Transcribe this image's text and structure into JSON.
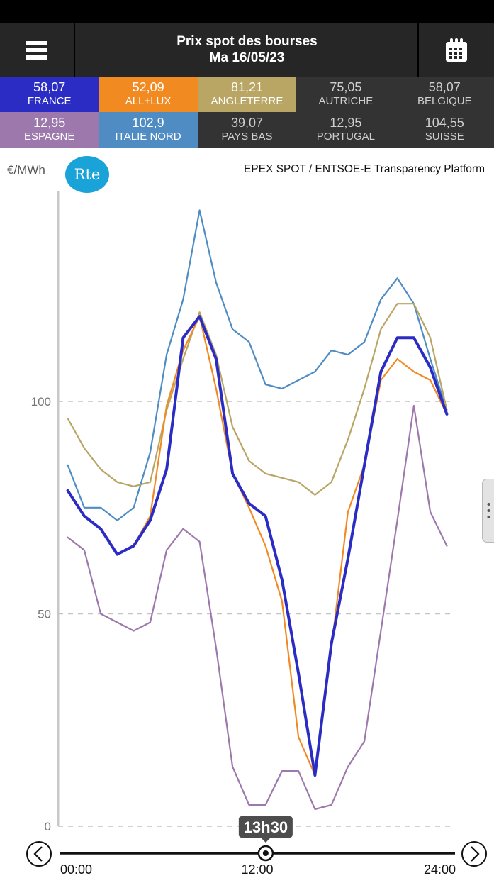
{
  "header": {
    "title": "Prix spot des bourses",
    "date": "Ma 16/05/23",
    "menu_icon": "hamburger-icon",
    "calendar_icon": "calendar-icon"
  },
  "tiles": [
    {
      "value": "58,07",
      "name": "FRANCE",
      "color": "#2a2cc4"
    },
    {
      "value": "52,09",
      "name": "ALL+LUX",
      "color": "#f28a22"
    },
    {
      "value": "81,21",
      "name": "ANGLETERRE",
      "color": "#b9a564"
    },
    {
      "value": "75,05",
      "name": "AUTRICHE",
      "color": "#333333"
    },
    {
      "value": "58,07",
      "name": "BELGIQUE",
      "color": "#333333"
    },
    {
      "value": "12,95",
      "name": "ESPAGNE",
      "color": "#9d78ad"
    },
    {
      "value": "102,9",
      "name": "ITALIE NORD",
      "color": "#4e8cc3"
    },
    {
      "value": "39,07",
      "name": "PAYS BAS",
      "color": "#333333"
    },
    {
      "value": "12,95",
      "name": "PORTUGAL",
      "color": "#333333"
    },
    {
      "value": "104,55",
      "name": "SUISSE",
      "color": "#333333"
    }
  ],
  "chart": {
    "unit": "€/MWh",
    "logo": "Rte",
    "source": "EPEX SPOT / ENTSOE-E Transparency Platform",
    "cursor_label": "13h30",
    "prev_icon": "chevron-left-icon",
    "next_icon": "chevron-right-icon"
  },
  "chart_data": {
    "type": "line",
    "x": [
      0,
      1,
      2,
      3,
      4,
      5,
      6,
      7,
      8,
      9,
      10,
      11,
      12,
      13,
      14,
      15,
      16,
      17,
      18,
      19,
      20,
      21,
      22,
      23
    ],
    "x_ticks": [
      "00:00",
      "12:00",
      "24:00"
    ],
    "xlim": [
      0,
      24
    ],
    "ylim": [
      0,
      145
    ],
    "y_ticks": [
      0,
      50,
      100
    ],
    "grid": "horizontal dashed",
    "series": [
      {
        "name": "ITALIE NORD",
        "color": "#4e8cc3",
        "width": 2.2,
        "values": [
          85,
          75,
          75,
          72,
          75,
          88,
          111,
          124,
          145,
          128,
          117,
          114,
          104,
          103,
          105,
          107,
          112,
          111,
          114,
          124,
          129,
          123,
          110,
          98
        ]
      },
      {
        "name": "ANGLETERRE",
        "color": "#b9a564",
        "width": 2.2,
        "values": [
          96,
          89,
          84,
          81,
          80,
          81,
          98,
          110,
          121,
          111,
          94,
          86,
          83,
          82,
          81,
          78,
          81,
          91,
          103,
          117,
          123,
          123,
          115,
          98
        ]
      },
      {
        "name": "ALL+LUX",
        "color": "#f28a22",
        "width": 2.2,
        "values": [
          79,
          73,
          70,
          64,
          66,
          73,
          99,
          112,
          120,
          103,
          83,
          75,
          66,
          53,
          21,
          12,
          42,
          74,
          85,
          105,
          110,
          107,
          105,
          97
        ]
      },
      {
        "name": "ESPAGNE",
        "color": "#9d78ad",
        "width": 2.2,
        "values": [
          68,
          65,
          50,
          48,
          46,
          48,
          65,
          70,
          67,
          42,
          14,
          5,
          5,
          13,
          13,
          4,
          5,
          14,
          20,
          46,
          72,
          99,
          74,
          66
        ]
      },
      {
        "name": "FRANCE",
        "color": "#2a2cc4",
        "width": 4,
        "values": [
          79,
          73,
          70,
          64,
          66,
          72,
          84,
          115,
          120,
          110,
          83,
          76,
          73,
          58,
          36,
          12,
          43,
          63,
          85,
          107,
          115,
          115,
          108,
          97
        ]
      }
    ]
  }
}
